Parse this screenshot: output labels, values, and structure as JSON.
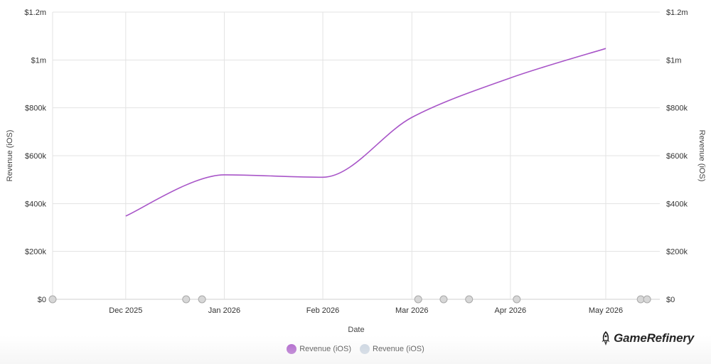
{
  "chart_data": {
    "type": "line",
    "xlabel": "Date",
    "ylabel_left": "Revenue (iOS)",
    "ylabel_right": "Revenue (iOS)",
    "y_ticks": [
      "$0",
      "$200k",
      "$400k",
      "$600k",
      "$800k",
      "$1m",
      "$1.2m"
    ],
    "ylim": [
      0,
      1200000
    ],
    "x_ticks": [
      "Dec 2025",
      "Jan 2026",
      "Feb 2026",
      "Mar 2026",
      "Apr 2026",
      "May 2026"
    ],
    "x_range": [
      "2025-11-08",
      "2026-05-18"
    ],
    "grid": true,
    "legend_position": "bottom",
    "series": [
      {
        "name": "Revenue (iOS)",
        "color": "#a855c8",
        "x": [
          "2025-12-01",
          "2026-01-01",
          "2026-02-01",
          "2026-03-01",
          "2026-04-01",
          "2026-05-01"
        ],
        "values": [
          348000,
          520000,
          510000,
          760000,
          925000,
          1048000
        ]
      },
      {
        "name": "Revenue (iOS)",
        "color": "#c8d3e0",
        "type": "event-markers",
        "x": [
          "2025-11-08",
          "2025-12-20",
          "2025-12-25",
          "2026-03-03",
          "2026-03-11",
          "2026-03-19",
          "2026-04-03",
          "2026-05-12",
          "2026-05-14"
        ],
        "values": [
          0,
          0,
          0,
          0,
          0,
          0,
          0,
          0,
          0
        ]
      }
    ]
  },
  "legend": {
    "items": [
      {
        "label": "Revenue (iOS)",
        "color": "#a855c8"
      },
      {
        "label": "Revenue (iOS)",
        "color": "#c8d3e0"
      }
    ]
  },
  "brand": {
    "name": "GameRefinery"
  }
}
